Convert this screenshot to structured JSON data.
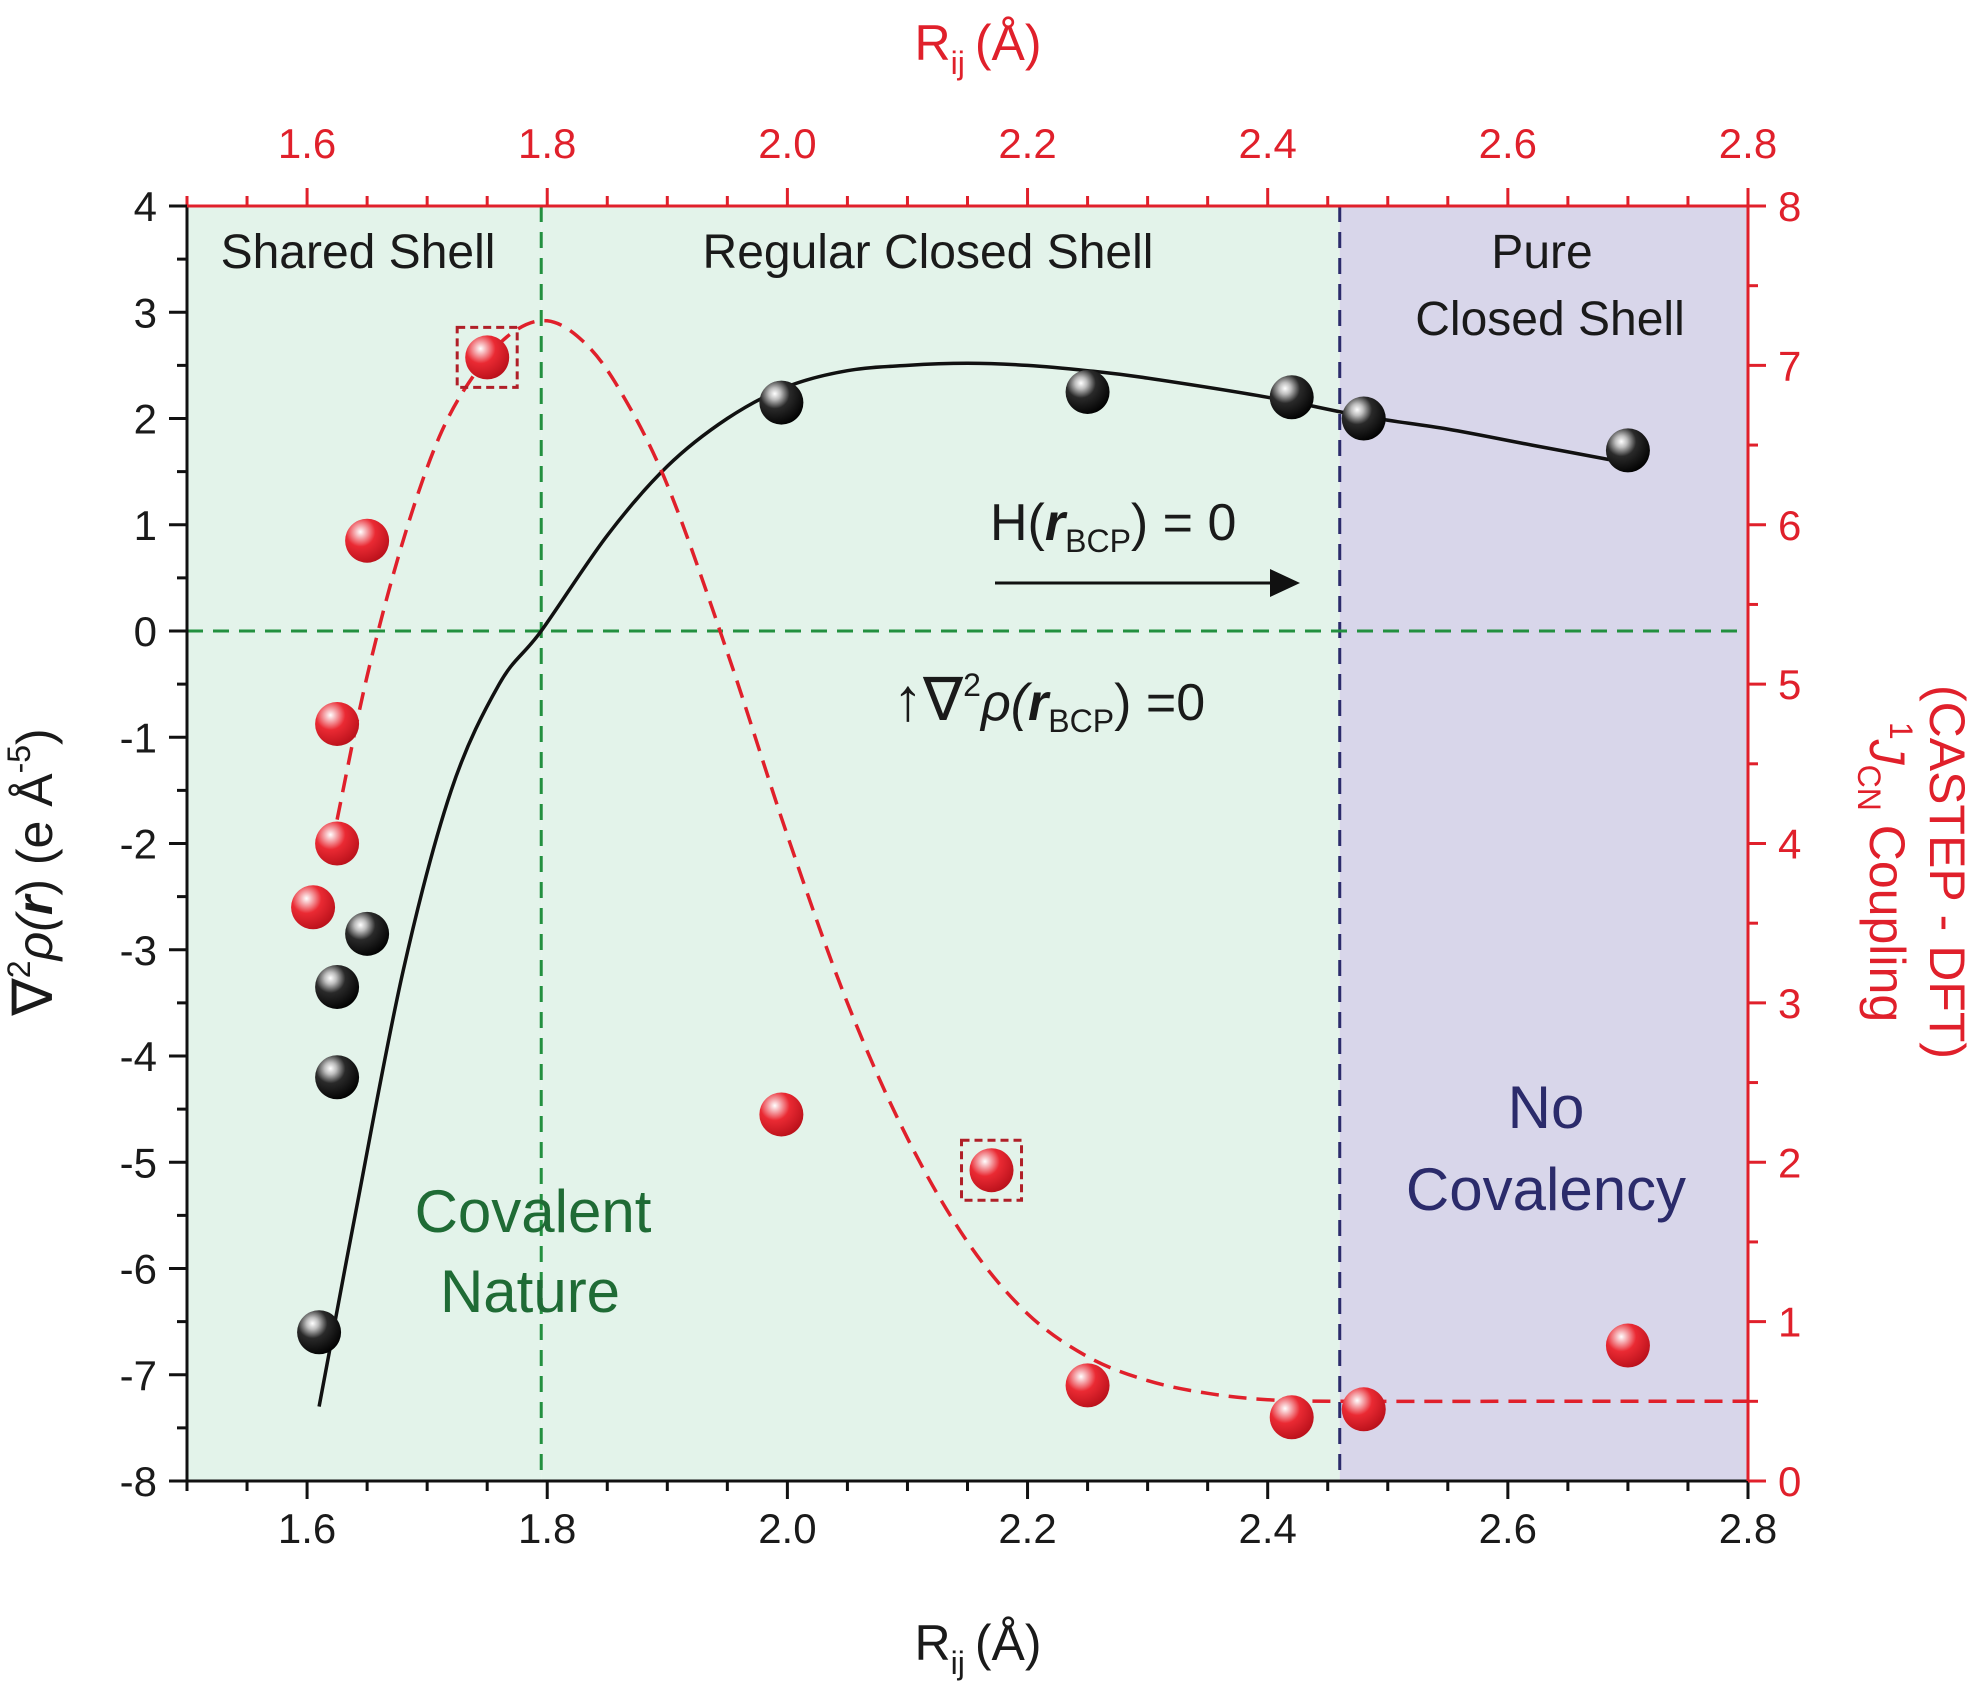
{
  "chart_data": {
    "type": "scatter",
    "x_axis": {
      "label_main": "R",
      "label_sub": "ij",
      "label_unit": "(Å)",
      "range": [
        1.5,
        2.8
      ],
      "ticks": [
        "1.6",
        "1.8",
        "2.0",
        "2.2",
        "2.4",
        "2.6",
        "2.8"
      ]
    },
    "top_axis": {
      "label_main": "R",
      "label_sub": "ij",
      "label_unit": "(Å)",
      "range": [
        1.5,
        2.8
      ],
      "ticks": [
        "1.6",
        "1.8",
        "2.0",
        "2.2",
        "2.4",
        "2.6",
        "2.8"
      ]
    },
    "y_left": {
      "label_prefix": "∇",
      "label_sup": "2",
      "label_rho": "ρ(",
      "label_r": "r",
      "label_close": ")",
      "label_unit": " (e Å",
      "label_unit_sup": "-5",
      "label_unit_close": ")",
      "range": [
        -8,
        4
      ],
      "ticks": [
        "4",
        "3",
        "2",
        "1",
        "0",
        "-1",
        "-2",
        "-3",
        "-4",
        "-5",
        "-6",
        "-7",
        "-8"
      ]
    },
    "y_right": {
      "label_sup": "1",
      "label_J": "J",
      "label_sub": "CN",
      "label_rest": " Coupling",
      "label_line2": "(CASTEP - DFT)",
      "range": [
        0,
        8
      ],
      "ticks": [
        "8",
        "7",
        "6",
        "5",
        "4",
        "3",
        "2",
        "1",
        "0"
      ]
    },
    "regions": [
      {
        "name": "shared",
        "x_range": [
          1.5,
          1.795
        ],
        "color": "#e3f3ea"
      },
      {
        "name": "regular",
        "x_range": [
          1.795,
          2.46
        ],
        "color": "#e3f3ea"
      },
      {
        "name": "pure",
        "x_range": [
          2.46,
          2.8
        ],
        "color": "#d8d6ea"
      }
    ],
    "region_labels": {
      "shared_shell": "Shared Shell",
      "regular_closed_shell": "Regular Closed Shell",
      "pure_line1": "Pure",
      "pure_line2": "Closed Shell"
    },
    "annotations": {
      "covalent_line1": "Covalent",
      "covalent_line2": "Nature",
      "no_line1": "No",
      "no_line2": "Covalency",
      "h_prefix": "H(",
      "h_r": "r",
      "h_sub": "BCP",
      "h_suffix": ") = 0",
      "lap_arrow": "↑",
      "lap_nabla": "∇",
      "lap_sup": "2",
      "lap_rho": "ρ(",
      "lap_r": "r",
      "lap_sub": "BCP",
      "lap_suffix": ") =0"
    },
    "reference_lines": {
      "vertical_green_x": 1.795,
      "vertical_navy_x": 2.46,
      "horizontal_green_y": 0
    },
    "series": [
      {
        "name": "laplacian",
        "axis": "left",
        "color": "#111111",
        "points": [
          {
            "x": 1.61,
            "y": -6.6
          },
          {
            "x": 1.625,
            "y": -4.2
          },
          {
            "x": 1.625,
            "y": -3.35
          },
          {
            "x": 1.65,
            "y": -2.85
          },
          {
            "x": 1.995,
            "y": 2.15
          },
          {
            "x": 2.25,
            "y": 2.25
          },
          {
            "x": 2.42,
            "y": 2.2
          },
          {
            "x": 2.48,
            "y": 2.0
          },
          {
            "x": 2.7,
            "y": 1.7
          }
        ],
        "fit": [
          {
            "x": 1.61,
            "y": -7.3
          },
          {
            "x": 1.64,
            "y": -5.5
          },
          {
            "x": 1.68,
            "y": -3.2
          },
          {
            "x": 1.72,
            "y": -1.5
          },
          {
            "x": 1.76,
            "y": -0.5
          },
          {
            "x": 1.795,
            "y": 0.0
          },
          {
            "x": 1.85,
            "y": 0.9
          },
          {
            "x": 1.9,
            "y": 1.55
          },
          {
            "x": 1.95,
            "y": 2.0
          },
          {
            "x": 2.0,
            "y": 2.3
          },
          {
            "x": 2.05,
            "y": 2.45
          },
          {
            "x": 2.1,
            "y": 2.5
          },
          {
            "x": 2.15,
            "y": 2.52
          },
          {
            "x": 2.2,
            "y": 2.5
          },
          {
            "x": 2.25,
            "y": 2.45
          },
          {
            "x": 2.3,
            "y": 2.38
          },
          {
            "x": 2.4,
            "y": 2.2
          },
          {
            "x": 2.48,
            "y": 2.02
          },
          {
            "x": 2.55,
            "y": 1.9
          },
          {
            "x": 2.62,
            "y": 1.75
          },
          {
            "x": 2.7,
            "y": 1.58
          }
        ]
      },
      {
        "name": "coupling",
        "axis": "right",
        "color": "#e0202b",
        "points": [
          {
            "x": 1.605,
            "y": 3.6,
            "boxed": false
          },
          {
            "x": 1.625,
            "y": 4.0,
            "boxed": false
          },
          {
            "x": 1.625,
            "y": 4.75,
            "boxed": false
          },
          {
            "x": 1.65,
            "y": 5.9,
            "boxed": false
          },
          {
            "x": 1.75,
            "y": 7.05,
            "boxed": true
          },
          {
            "x": 1.995,
            "y": 2.3,
            "boxed": false
          },
          {
            "x": 2.17,
            "y": 1.95,
            "boxed": true
          },
          {
            "x": 2.25,
            "y": 0.6,
            "boxed": false
          },
          {
            "x": 2.42,
            "y": 0.4,
            "boxed": false
          },
          {
            "x": 2.48,
            "y": 0.45,
            "boxed": false
          },
          {
            "x": 2.7,
            "y": 0.85,
            "boxed": false
          }
        ],
        "fit": [
          {
            "x": 1.625,
            "y": 4.15
          },
          {
            "x": 1.65,
            "y": 5.05
          },
          {
            "x": 1.68,
            "y": 5.9
          },
          {
            "x": 1.71,
            "y": 6.55
          },
          {
            "x": 1.74,
            "y": 6.95
          },
          {
            "x": 1.77,
            "y": 7.2
          },
          {
            "x": 1.8,
            "y": 7.28
          },
          {
            "x": 1.83,
            "y": 7.15
          },
          {
            "x": 1.86,
            "y": 6.85
          },
          {
            "x": 1.9,
            "y": 6.25
          },
          {
            "x": 1.95,
            "y": 5.2
          },
          {
            "x": 2.0,
            "y": 4.05
          },
          {
            "x": 2.05,
            "y": 3.0
          },
          {
            "x": 2.1,
            "y": 2.15
          },
          {
            "x": 2.15,
            "y": 1.5
          },
          {
            "x": 2.2,
            "y": 1.05
          },
          {
            "x": 2.25,
            "y": 0.78
          },
          {
            "x": 2.3,
            "y": 0.63
          },
          {
            "x": 2.35,
            "y": 0.55
          },
          {
            "x": 2.4,
            "y": 0.51
          },
          {
            "x": 2.46,
            "y": 0.5
          },
          {
            "x": 2.6,
            "y": 0.5
          },
          {
            "x": 2.8,
            "y": 0.5
          }
        ]
      }
    ]
  }
}
